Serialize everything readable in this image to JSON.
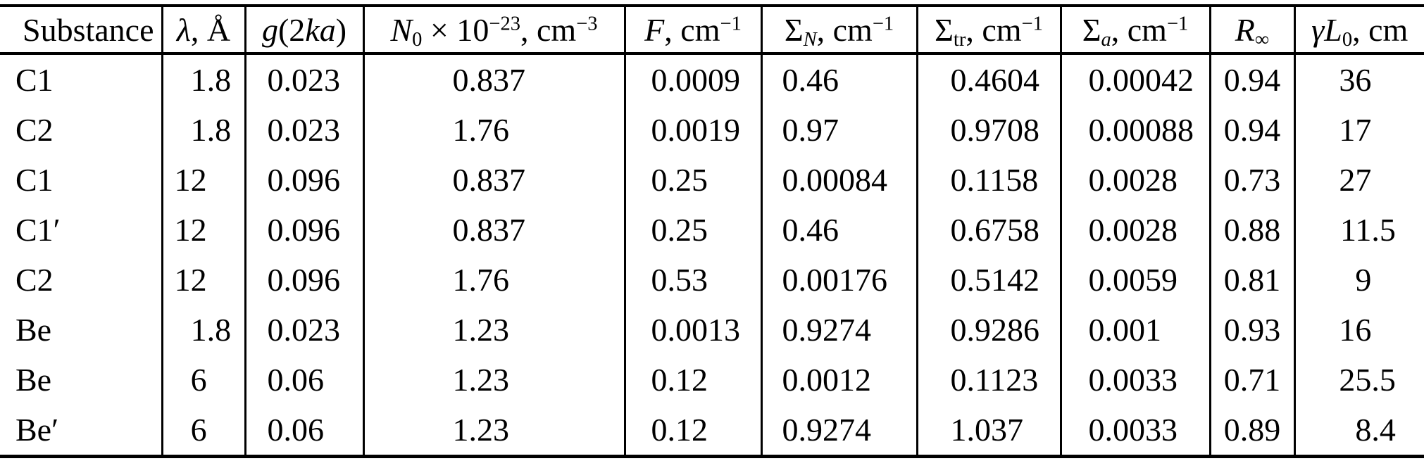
{
  "colors": {
    "background": "#ffffff",
    "text": "#000000",
    "rule": "#000000"
  },
  "table": {
    "columns": [
      {
        "id": "substance",
        "label_runs": [
          {
            "t": "Substance",
            "s": ""
          }
        ]
      },
      {
        "id": "lambda",
        "label_runs": [
          {
            "t": "λ",
            "s": "i"
          },
          {
            "t": ", Å",
            "s": ""
          }
        ]
      },
      {
        "id": "g2ka",
        "label_runs": [
          {
            "t": "g",
            "s": "i"
          },
          {
            "t": "(2",
            "s": ""
          },
          {
            "t": "ka",
            "s": "i"
          },
          {
            "t": ")",
            "s": ""
          }
        ]
      },
      {
        "id": "n0",
        "label_runs": [
          {
            "t": "N",
            "s": "i"
          },
          {
            "t": "0",
            "s": "sub"
          },
          {
            "t": " × 10",
            "s": ""
          },
          {
            "t": "−23",
            "s": "sup"
          },
          {
            "t": ", cm",
            "s": ""
          },
          {
            "t": "−3",
            "s": "sup"
          }
        ]
      },
      {
        "id": "f",
        "label_runs": [
          {
            "t": "F",
            "s": "i"
          },
          {
            "t": ", cm",
            "s": ""
          },
          {
            "t": "−1",
            "s": "sup"
          }
        ]
      },
      {
        "id": "sigma-n",
        "label_runs": [
          {
            "t": "Σ",
            "s": ""
          },
          {
            "t": "N",
            "s": "isub"
          },
          {
            "t": ", cm",
            "s": ""
          },
          {
            "t": "−1",
            "s": "sup"
          }
        ]
      },
      {
        "id": "sigma-tr",
        "label_runs": [
          {
            "t": "Σ",
            "s": ""
          },
          {
            "t": "tr",
            "s": "sub"
          },
          {
            "t": ", cm",
            "s": ""
          },
          {
            "t": "−1",
            "s": "sup"
          }
        ]
      },
      {
        "id": "sigma-a",
        "label_runs": [
          {
            "t": "Σ",
            "s": ""
          },
          {
            "t": "a",
            "s": "isub"
          },
          {
            "t": ", cm",
            "s": ""
          },
          {
            "t": "−1",
            "s": "sup"
          }
        ]
      },
      {
        "id": "r-inf",
        "label_runs": [
          {
            "t": "R",
            "s": "i"
          },
          {
            "t": "∞",
            "s": "sub"
          }
        ]
      },
      {
        "id": "gamma-l0",
        "label_runs": [
          {
            "t": "γL",
            "s": "i"
          },
          {
            "t": "0",
            "s": "sub"
          },
          {
            "t": ", cm",
            "s": ""
          }
        ]
      }
    ],
    "rows": [
      [
        "C1",
        "1.8",
        "0.023",
        "0.837",
        "0.0009",
        "0.46",
        "0.4604",
        "0.00042",
        "0.94",
        "36"
      ],
      [
        "C2",
        "1.8",
        "0.023",
        "1.76",
        "0.0019",
        "0.97",
        "0.9708",
        "0.00088",
        "0.94",
        "17"
      ],
      [
        "C1",
        "12",
        "0.096",
        "0.837",
        "0.25",
        "0.00084",
        "0.1158",
        "0.0028",
        "0.73",
        "27"
      ],
      [
        "C1′",
        "12",
        "0.096",
        "0.837",
        "0.25",
        "0.46",
        "0.6758",
        "0.0028",
        "0.88",
        "11.5"
      ],
      [
        "C2",
        "12",
        "0.096",
        "1.76",
        "0.53",
        "0.00176",
        "0.5142",
        "0.0059",
        "0.81",
        "9"
      ],
      [
        "Be",
        "1.8",
        "0.023",
        "1.23",
        "0.0013",
        "0.9274",
        "0.9286",
        "0.001",
        "0.93",
        "16"
      ],
      [
        "Be",
        "6",
        "0.06",
        "1.23",
        "0.12",
        "0.0012",
        "0.1123",
        "0.0033",
        "0.71",
        "25.5"
      ],
      [
        "Be′",
        "6",
        "0.06",
        "1.23",
        "0.12",
        "0.9274",
        "1.037",
        "0.0033",
        "0.89",
        "8.4"
      ]
    ]
  },
  "chart_data": {
    "type": "table",
    "title": "",
    "columns": [
      "Substance",
      "λ, Å",
      "g(2ka)",
      "N₀ × 10⁻²³, cm⁻³",
      "F, cm⁻¹",
      "Σ_N, cm⁻¹",
      "Σ_tr, cm⁻¹",
      "Σ_a, cm⁻¹",
      "R_∞",
      "γL₀, cm"
    ],
    "rows": [
      [
        "C1",
        1.8,
        0.023,
        0.837,
        0.0009,
        0.46,
        0.4604,
        0.00042,
        0.94,
        36
      ],
      [
        "C2",
        1.8,
        0.023,
        1.76,
        0.0019,
        0.97,
        0.9708,
        0.00088,
        0.94,
        17
      ],
      [
        "C1",
        12,
        0.096,
        0.837,
        0.25,
        0.00084,
        0.1158,
        0.0028,
        0.73,
        27
      ],
      [
        "C1′",
        12,
        0.096,
        0.837,
        0.25,
        0.46,
        0.6758,
        0.0028,
        0.88,
        11.5
      ],
      [
        "C2",
        12,
        0.096,
        1.76,
        0.53,
        0.00176,
        0.5142,
        0.0059,
        0.81,
        9
      ],
      [
        "Be",
        1.8,
        0.023,
        1.23,
        0.0013,
        0.9274,
        0.9286,
        0.001,
        0.93,
        16
      ],
      [
        "Be",
        6,
        0.06,
        1.23,
        0.12,
        0.0012,
        0.1123,
        0.0033,
        0.71,
        25.5
      ],
      [
        "Be′",
        6,
        0.06,
        1.23,
        0.12,
        0.9274,
        1.037,
        0.0033,
        0.89,
        8.4
      ]
    ]
  }
}
